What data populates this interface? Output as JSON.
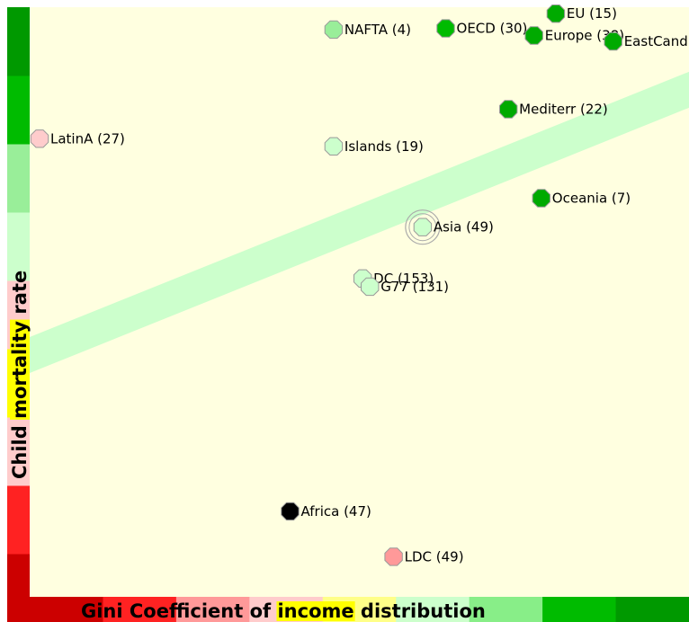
{
  "chart_data": {
    "type": "scatter",
    "xlabel": {
      "segments": [
        {
          "text": "Gini Coefficient of "
        },
        {
          "text": "income",
          "highlight": "#ffff00"
        },
        {
          "text": " distribution"
        }
      ]
    },
    "ylabel": {
      "segments": [
        {
          "text": "Child "
        },
        {
          "text": "mortality",
          "highlight": "#ffff00"
        },
        {
          "text": " rate"
        }
      ]
    },
    "xlim": [
      0,
      100
    ],
    "ylim": [
      0,
      100
    ],
    "background": "#ffffe0",
    "trend_band": {
      "x": [
        0,
        100
      ],
      "y": [
        41,
        86
      ],
      "color": "#ccffcc"
    },
    "x_scale_colors": [
      "#cc0000",
      "#ff2222",
      "#ff9999",
      "#ffcccc",
      "#ffff88",
      "#ccffcc",
      "#88ee88",
      "#00bb00",
      "#009900"
    ],
    "y_scale_colors": [
      "#cc0000",
      "#ff2222",
      "#ffcccc",
      "#ffff00",
      "#ffcccc",
      "#ccffcc",
      "#99ee99",
      "#00bb00",
      "#009900"
    ],
    "points": [
      {
        "label": "NAFTA (4)",
        "x": 46.1,
        "y": 96.2,
        "color": "#99ee99"
      },
      {
        "label": "OECD (30)",
        "x": 63.1,
        "y": 96.4,
        "color": "#00bb00"
      },
      {
        "label": "EU (15)",
        "x": 79.8,
        "y": 98.9,
        "color": "#00aa00"
      },
      {
        "label": "Europe (38)",
        "x": 76.5,
        "y": 95.2,
        "color": "#00aa00"
      },
      {
        "label": "EastCand",
        "x": 88.5,
        "y": 94.2,
        "color": "#00aa00"
      },
      {
        "label": "Mediterr (22)",
        "x": 72.6,
        "y": 82.7,
        "color": "#00aa00"
      },
      {
        "label": "LatinA (27)",
        "x": 1.5,
        "y": 77.7,
        "color": "#ffcccc"
      },
      {
        "label": "Islands (19)",
        "x": 46.1,
        "y": 76.4,
        "color": "#ccffcc"
      },
      {
        "label": "Oceania (7)",
        "x": 77.6,
        "y": 67.6,
        "color": "#00aa00"
      },
      {
        "label": "Asia (49)",
        "x": 59.6,
        "y": 62.7,
        "color": "#ccffcc",
        "highlighted": true
      },
      {
        "label": "DC (153)",
        "x": 50.5,
        "y": 54.0,
        "color": "#ccffcc"
      },
      {
        "label": "G77 (131)",
        "x": 51.6,
        "y": 52.6,
        "color": "#ccffcc"
      },
      {
        "label": "Africa (47)",
        "x": 39.5,
        "y": 14.5,
        "color": "#000000"
      },
      {
        "label": "LDC (49)",
        "x": 55.2,
        "y": 6.8,
        "color": "#ff9999"
      }
    ]
  }
}
